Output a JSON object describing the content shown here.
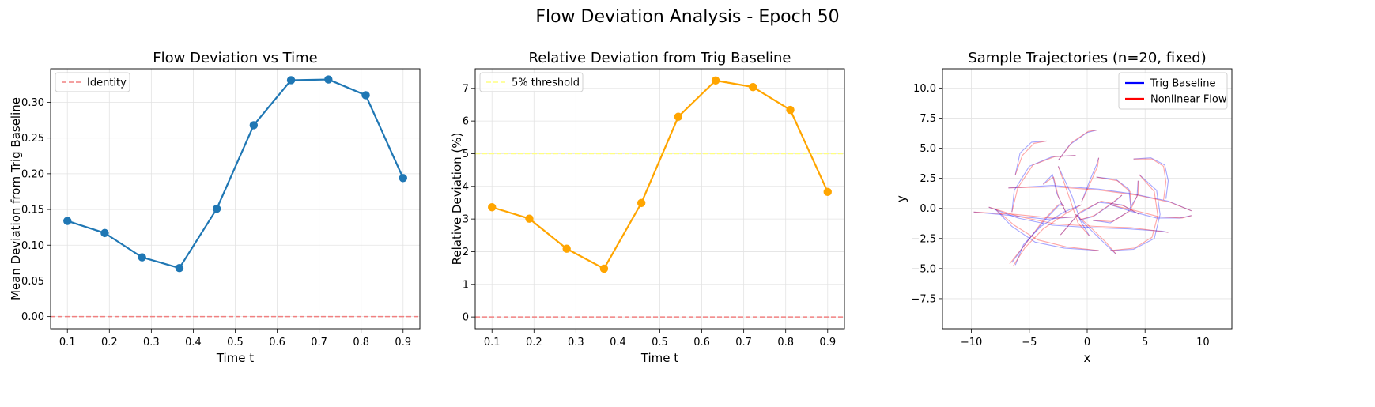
{
  "figure": {
    "title": "Flow Deviation Analysis - Epoch 50"
  },
  "chart_data": [
    {
      "type": "line",
      "title": "Flow Deviation vs Time",
      "xlabel": "Time t",
      "ylabel": "Mean Deviation from Trig Baseline",
      "xlim": [
        0.06,
        0.94
      ],
      "ylim": [
        -0.017,
        0.347
      ],
      "xticks": [
        0.1,
        0.2,
        0.3,
        0.4,
        0.5,
        0.6,
        0.7,
        0.8,
        0.9
      ],
      "xtick_labels": [
        "0.1",
        "0.2",
        "0.3",
        "0.4",
        "0.5",
        "0.6",
        "0.7",
        "0.8",
        "0.9"
      ],
      "yticks": [
        0.0,
        0.05,
        0.1,
        0.15,
        0.2,
        0.25,
        0.3
      ],
      "ytick_labels": [
        "0.00",
        "0.05",
        "0.10",
        "0.15",
        "0.20",
        "0.25",
        "0.30"
      ],
      "grid": true,
      "legend": "top-left",
      "series": [
        {
          "name": "",
          "color": "#1f77b4",
          "marker": "circle",
          "x": [
            0.1,
            0.189,
            0.278,
            0.367,
            0.456,
            0.544,
            0.633,
            0.722,
            0.811,
            0.9
          ],
          "y": [
            0.134,
            0.117,
            0.083,
            0.068,
            0.151,
            0.268,
            0.331,
            0.332,
            0.31,
            0.194
          ]
        }
      ],
      "reference_lines": [
        {
          "name": "Identity",
          "orientation": "horizontal",
          "value": 0.0,
          "color": "#f08080",
          "style": "dashed"
        }
      ]
    },
    {
      "type": "line",
      "title": "Relative Deviation from Trig Baseline",
      "xlabel": "Time t",
      "ylabel": "Relative Deviation (%)",
      "xlim": [
        0.06,
        0.94
      ],
      "ylim": [
        -0.36,
        7.6
      ],
      "xticks": [
        0.1,
        0.2,
        0.3,
        0.4,
        0.5,
        0.6,
        0.7,
        0.8,
        0.9
      ],
      "xtick_labels": [
        "0.1",
        "0.2",
        "0.3",
        "0.4",
        "0.5",
        "0.6",
        "0.7",
        "0.8",
        "0.9"
      ],
      "yticks": [
        0,
        1,
        2,
        3,
        4,
        5,
        6,
        7
      ],
      "ytick_labels": [
        "0",
        "1",
        "2",
        "3",
        "4",
        "5",
        "6",
        "7"
      ],
      "grid": true,
      "legend": "top-left",
      "series": [
        {
          "name": "",
          "color": "#ffa500",
          "marker": "circle",
          "x": [
            0.1,
            0.189,
            0.278,
            0.367,
            0.456,
            0.544,
            0.633,
            0.722,
            0.811,
            0.9
          ],
          "y": [
            3.36,
            3.01,
            2.09,
            1.48,
            3.49,
            6.13,
            7.24,
            7.04,
            6.34,
            3.83
          ]
        }
      ],
      "reference_lines": [
        {
          "name": "5% threshold",
          "orientation": "horizontal",
          "value": 5.0,
          "color": "#ffff80",
          "style": "dashed"
        },
        {
          "name": "",
          "orientation": "horizontal",
          "value": 0.0,
          "color": "#f08080",
          "style": "dashed"
        }
      ]
    },
    {
      "type": "line",
      "title": "Sample Trajectories (n=20, fixed)",
      "xlabel": "x",
      "ylabel": "y",
      "xlim": [
        -12.5,
        12.5
      ],
      "ylim": [
        -10.0,
        11.6
      ],
      "xticks": [
        -10,
        -5,
        0,
        5,
        10
      ],
      "xtick_labels": [
        "−10",
        "−5",
        "0",
        "5",
        "10"
      ],
      "yticks": [
        -7.5,
        -5.0,
        -2.5,
        0.0,
        2.5,
        5.0,
        7.5,
        10.0
      ],
      "ytick_labels": [
        "−7.5",
        "−5.0",
        "−2.5",
        "0.0",
        "2.5",
        "5.0",
        "7.5",
        "10.0"
      ],
      "grid": true,
      "legend": "top-right",
      "legend_entries": [
        {
          "name": "Trig Baseline",
          "color": "#0000ff"
        },
        {
          "name": "Nonlinear Flow",
          "color": "#ff0000"
        }
      ],
      "trajectories": [
        {
          "baseline": [
            [
              -9.8,
              -0.3
            ],
            [
              -6.5,
              -0.6
            ],
            [
              -3.5,
              -0.9
            ],
            [
              -1.0,
              -0.7
            ]
          ],
          "flow": [
            [
              -9.8,
              -0.3
            ],
            [
              -6.2,
              -0.5
            ],
            [
              -3.0,
              -0.8
            ],
            [
              -0.8,
              -0.7
            ]
          ]
        },
        {
          "baseline": [
            [
              -6.8,
              1.7
            ],
            [
              -3.0,
              1.9
            ],
            [
              1.0,
              1.6
            ],
            [
              4.0,
              1.2
            ],
            [
              7.0,
              0.6
            ],
            [
              9.0,
              -0.2
            ]
          ],
          "flow": [
            [
              -6.8,
              1.7
            ],
            [
              -2.8,
              1.8
            ],
            [
              1.2,
              1.5
            ],
            [
              4.3,
              1.1
            ],
            [
              7.2,
              0.5
            ],
            [
              9.0,
              -0.2
            ]
          ]
        },
        {
          "baseline": [
            [
              -8.5,
              0.1
            ],
            [
              -6.0,
              -0.8
            ],
            [
              -3.0,
              -1.4
            ],
            [
              0.5,
              -1.6
            ],
            [
              3.5,
              -1.7
            ],
            [
              6.5,
              -1.9
            ],
            [
              7.0,
              -2.0
            ]
          ],
          "flow": [
            [
              -8.5,
              0.1
            ],
            [
              -5.8,
              -0.7
            ],
            [
              -2.7,
              -1.3
            ],
            [
              0.8,
              -1.5
            ],
            [
              3.8,
              -1.6
            ],
            [
              7.0,
              -2.0
            ]
          ]
        },
        {
          "baseline": [
            [
              -8.0,
              0.0
            ],
            [
              -6.5,
              -1.5
            ],
            [
              -4.5,
              -2.8
            ],
            [
              -2.0,
              -3.3
            ],
            [
              1.0,
              -3.5
            ]
          ],
          "flow": [
            [
              -8.0,
              0.0
            ],
            [
              -6.3,
              -1.4
            ],
            [
              -4.3,
              -2.6
            ],
            [
              -1.8,
              -3.2
            ],
            [
              1.0,
              -3.5
            ]
          ]
        },
        {
          "baseline": [
            [
              -6.2,
              2.8
            ],
            [
              -5.8,
              4.6
            ],
            [
              -4.8,
              5.5
            ],
            [
              -3.5,
              5.6
            ]
          ],
          "flow": [
            [
              -6.2,
              2.8
            ],
            [
              -5.6,
              4.4
            ],
            [
              -4.6,
              5.4
            ],
            [
              -3.5,
              5.6
            ]
          ]
        },
        {
          "baseline": [
            [
              -6.5,
              -0.3
            ],
            [
              -6.3,
              1.5
            ],
            [
              -5.0,
              3.5
            ],
            [
              -3.0,
              4.3
            ],
            [
              -1.0,
              4.4
            ]
          ],
          "flow": [
            [
              -6.5,
              -0.3
            ],
            [
              -6.0,
              1.7
            ],
            [
              -4.7,
              3.6
            ],
            [
              -2.8,
              4.3
            ],
            [
              -1.0,
              4.4
            ]
          ]
        },
        {
          "baseline": [
            [
              -6.5,
              -4.5
            ],
            [
              -5.0,
              -2.5
            ],
            [
              -3.5,
              -0.8
            ],
            [
              -2.3,
              0.4
            ],
            [
              -2.0,
              0.2
            ]
          ],
          "flow": [
            [
              -6.7,
              -4.6
            ],
            [
              -5.2,
              -2.8
            ],
            [
              -3.8,
              -1.0
            ],
            [
              -2.5,
              0.3
            ],
            [
              -2.0,
              0.2
            ]
          ]
        },
        {
          "baseline": [
            [
              -6.2,
              -4.7
            ],
            [
              -5.5,
              -3.0
            ],
            [
              -4.0,
              -1.5
            ],
            [
              -2.0,
              -0.3
            ],
            [
              -0.5,
              0.3
            ]
          ],
          "flow": [
            [
              -6.4,
              -4.8
            ],
            [
              -5.4,
              -3.3
            ],
            [
              -3.8,
              -1.7
            ],
            [
              -1.8,
              -0.4
            ],
            [
              -0.5,
              0.3
            ]
          ]
        },
        {
          "baseline": [
            [
              -3.8,
              2.0
            ],
            [
              -3.0,
              2.8
            ],
            [
              -2.6,
              1.2
            ],
            [
              -1.8,
              -0.4
            ]
          ],
          "flow": [
            [
              -3.8,
              2.0
            ],
            [
              -2.9,
              2.6
            ],
            [
              -2.5,
              1.0
            ],
            [
              -1.8,
              -0.4
            ]
          ]
        },
        {
          "baseline": [
            [
              -2.5,
              4.0
            ],
            [
              -1.5,
              5.3
            ],
            [
              0.0,
              6.3
            ],
            [
              0.8,
              6.5
            ]
          ],
          "flow": [
            [
              -2.5,
              4.0
            ],
            [
              -1.3,
              5.5
            ],
            [
              0.1,
              6.4
            ],
            [
              0.8,
              6.5
            ]
          ]
        },
        {
          "baseline": [
            [
              -2.5,
              3.5
            ],
            [
              -1.3,
              1.0
            ],
            [
              -0.6,
              -1.0
            ],
            [
              0.2,
              -2.3
            ]
          ],
          "flow": [
            [
              -2.5,
              3.5
            ],
            [
              -1.5,
              0.8
            ],
            [
              -0.8,
              -1.2
            ],
            [
              0.2,
              -2.3
            ]
          ]
        },
        {
          "baseline": [
            [
              -2.3,
              -2.2
            ],
            [
              -0.8,
              -0.5
            ],
            [
              1.0,
              0.5
            ],
            [
              3.0,
              0.3
            ],
            [
              4.5,
              -0.5
            ]
          ],
          "flow": [
            [
              -2.3,
              -2.2
            ],
            [
              -0.6,
              -0.3
            ],
            [
              1.2,
              0.6
            ],
            [
              3.2,
              0.2
            ],
            [
              4.5,
              -0.5
            ]
          ]
        },
        {
          "baseline": [
            [
              -0.8,
              -1.0
            ],
            [
              0.5,
              -0.7
            ],
            [
              2.0,
              0.3
            ],
            [
              2.8,
              0.9
            ],
            [
              3.0,
              1.1
            ]
          ],
          "flow": [
            [
              -0.8,
              -1.0
            ],
            [
              0.6,
              -0.6
            ],
            [
              2.1,
              0.4
            ],
            [
              3.0,
              1.1
            ]
          ]
        },
        {
          "baseline": [
            [
              -0.5,
              0.5
            ],
            [
              0.3,
              2.5
            ],
            [
              0.8,
              3.6
            ],
            [
              1.0,
              4.2
            ]
          ],
          "flow": [
            [
              -0.5,
              0.5
            ],
            [
              0.4,
              2.4
            ],
            [
              0.9,
              3.5
            ],
            [
              1.0,
              4.2
            ]
          ]
        },
        {
          "baseline": [
            [
              -1.0,
              -0.5
            ],
            [
              0.0,
              -1.5
            ],
            [
              1.5,
              -2.9
            ],
            [
              2.5,
              -3.8
            ]
          ],
          "flow": [
            [
              -1.0,
              -0.5
            ],
            [
              0.1,
              -1.4
            ],
            [
              1.6,
              -2.8
            ],
            [
              2.5,
              -3.8
            ]
          ]
        },
        {
          "baseline": [
            [
              0.5,
              -1.0
            ],
            [
              2.0,
              -1.2
            ],
            [
              3.5,
              -0.3
            ],
            [
              4.3,
              1.0
            ],
            [
              4.4,
              2.3
            ]
          ],
          "flow": [
            [
              0.5,
              -1.0
            ],
            [
              2.2,
              -1.1
            ],
            [
              3.7,
              -0.2
            ],
            [
              4.4,
              1.2
            ],
            [
              4.4,
              2.3
            ]
          ]
        },
        {
          "baseline": [
            [
              0.8,
              2.6
            ],
            [
              2.5,
              2.4
            ],
            [
              3.6,
              1.6
            ],
            [
              3.8,
              -0.2
            ]
          ],
          "flow": [
            [
              0.8,
              2.6
            ],
            [
              2.6,
              2.3
            ],
            [
              3.7,
              1.4
            ],
            [
              3.8,
              -0.2
            ]
          ]
        },
        {
          "baseline": [
            [
              2.0,
              -3.5
            ],
            [
              4.0,
              -3.4
            ],
            [
              5.8,
              -2.5
            ],
            [
              6.3,
              -0.5
            ],
            [
              6.0,
              1.5
            ],
            [
              4.5,
              2.8
            ]
          ],
          "flow": [
            [
              2.0,
              -3.5
            ],
            [
              4.1,
              -3.3
            ],
            [
              5.6,
              -2.4
            ],
            [
              6.1,
              -0.6
            ],
            [
              5.8,
              1.4
            ],
            [
              4.5,
              2.8
            ]
          ]
        },
        {
          "baseline": [
            [
              2.0,
              0.3
            ],
            [
              4.0,
              -0.3
            ],
            [
              6.0,
              -0.8
            ],
            [
              8.0,
              -0.8
            ],
            [
              9.0,
              -0.6
            ]
          ],
          "flow": [
            [
              2.0,
              0.3
            ],
            [
              4.2,
              -0.2
            ],
            [
              6.2,
              -0.7
            ],
            [
              8.2,
              -0.8
            ],
            [
              9.0,
              -0.6
            ]
          ]
        },
        {
          "baseline": [
            [
              4.0,
              4.1
            ],
            [
              5.5,
              4.2
            ],
            [
              6.7,
              3.6
            ],
            [
              7.0,
              2.3
            ],
            [
              6.8,
              0.8
            ]
          ],
          "flow": [
            [
              4.0,
              4.1
            ],
            [
              5.6,
              4.1
            ],
            [
              6.6,
              3.5
            ],
            [
              6.8,
              2.2
            ],
            [
              6.6,
              0.7
            ]
          ]
        }
      ]
    }
  ]
}
